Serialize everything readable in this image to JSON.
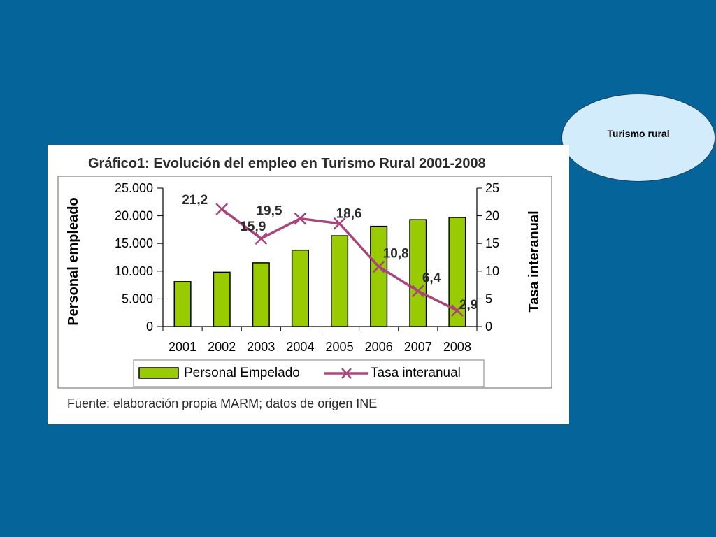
{
  "ellipse": {
    "label": "Turismo rural"
  },
  "chart_data": {
    "type": "bar",
    "title": "Gráfico1: Evolución del empleo en Turismo Rural 2001-2008",
    "categories": [
      "2001",
      "2002",
      "2003",
      "2004",
      "2005",
      "2006",
      "2007",
      "2008"
    ],
    "ylabel": "Personal empleado",
    "y2label": "Tasa interanual",
    "ylim": [
      0,
      25000
    ],
    "y2lim": [
      0,
      25
    ],
    "yticks": [
      "0",
      "5.000",
      "10.000",
      "15.000",
      "20.000",
      "25.000"
    ],
    "y2ticks": [
      "0",
      "5",
      "10",
      "15",
      "20",
      "25"
    ],
    "series": [
      {
        "name": "Personal Empelado",
        "type": "bar",
        "axis": "left",
        "color": "#99cc00",
        "values": [
          8100,
          9800,
          11500,
          13800,
          16400,
          18100,
          19300,
          19700
        ]
      },
      {
        "name": "Tasa interanual",
        "type": "line",
        "axis": "right",
        "color": "#a8457a",
        "x": [
          "2002",
          "2003",
          "2004",
          "2005",
          "2006",
          "2007",
          "2008"
        ],
        "values": [
          21.2,
          15.9,
          19.5,
          18.6,
          10.8,
          6.4,
          2.9
        ],
        "labels": [
          "21,2",
          "15,9",
          "19,5",
          "18,6",
          "10,8",
          "6,4",
          "2,9"
        ]
      }
    ],
    "legend": "bottom",
    "grid": false,
    "source": "Fuente: elaboración propia MARM; datos de origen INE"
  }
}
